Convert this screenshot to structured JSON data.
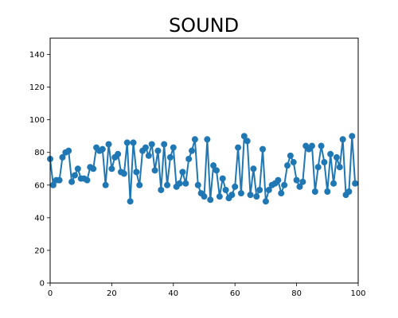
{
  "chart_data": {
    "type": "line",
    "title": "SOUND",
    "xlabel": "",
    "ylabel": "",
    "xlim": [
      0,
      100
    ],
    "ylim": [
      0,
      150
    ],
    "xticks": [
      0,
      20,
      40,
      60,
      80,
      100
    ],
    "yticks": [
      0,
      20,
      40,
      60,
      80,
      100,
      120,
      140
    ],
    "grid": false,
    "markers": true,
    "color": "#1f77b4",
    "series": [
      {
        "x": [
          0,
          1,
          2,
          3,
          4,
          5,
          6,
          7,
          8,
          9,
          10,
          11,
          12,
          13,
          14,
          15,
          16,
          17,
          18,
          19,
          20,
          21,
          22,
          23,
          24,
          25,
          26,
          27,
          28,
          29,
          30,
          31,
          32,
          33,
          34,
          35,
          36,
          37,
          38,
          39,
          40,
          41,
          42,
          43,
          44,
          45,
          46,
          47,
          48,
          49,
          50,
          51,
          52,
          53,
          54,
          55,
          56,
          57,
          58,
          59,
          60,
          61,
          62,
          63,
          64,
          65,
          66,
          67,
          68,
          69,
          70,
          71,
          72,
          73,
          74,
          75,
          76,
          77,
          78,
          79,
          80,
          81,
          82,
          83,
          84,
          85,
          86,
          87,
          88,
          89,
          90,
          91,
          92,
          93,
          94,
          95,
          96,
          97,
          98,
          99
        ],
        "values": [
          76,
          60,
          63,
          63,
          77,
          80,
          81,
          62,
          66,
          70,
          64,
          64,
          63,
          71,
          70,
          83,
          81,
          82,
          60,
          85,
          70,
          77,
          79,
          68,
          67,
          86,
          50,
          86,
          68,
          60,
          81,
          83,
          78,
          85,
          69,
          81,
          57,
          85,
          60,
          77,
          83,
          59,
          61,
          68,
          61,
          76,
          81,
          88,
          60,
          55,
          53,
          88,
          51,
          72,
          69,
          53,
          64,
          57,
          52,
          54,
          59,
          83,
          55,
          90,
          87,
          54,
          70,
          53,
          57,
          82,
          50,
          57,
          60,
          61,
          63,
          55,
          60,
          72,
          78,
          74,
          63,
          59,
          62,
          84,
          82,
          84,
          56,
          71,
          84,
          74,
          56,
          79,
          61,
          77,
          71,
          88,
          54,
          56,
          90,
          61
        ]
      }
    ]
  }
}
